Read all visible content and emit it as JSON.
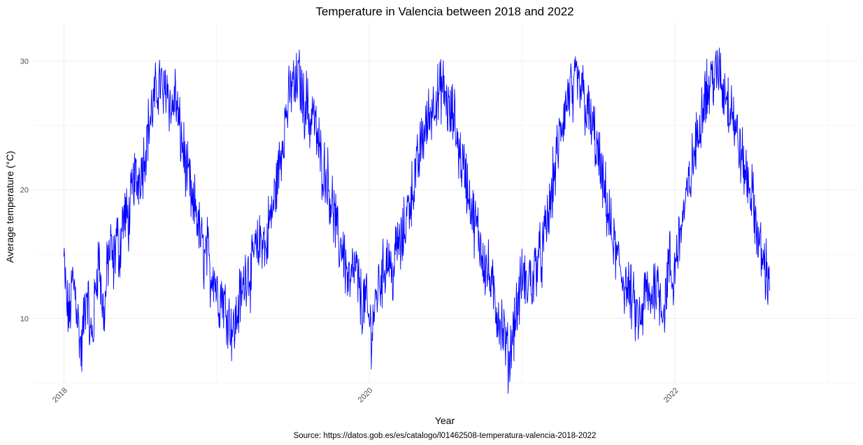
{
  "chart_data": {
    "type": "line",
    "title": "Temperature in Valencia between 2018 and 2022",
    "xlabel": "Year",
    "ylabel": "Average temperature (°C)",
    "caption": "Source: https://datos.gob.es/es/catalogo/l01462508-temperatura-valencia-2018-2022",
    "x_ticks": [
      "2018",
      "2020",
      "2022"
    ],
    "y_ticks": [
      "10",
      "20",
      "30"
    ],
    "xlim": [
      "2018-01-01",
      "2022-12-31"
    ],
    "ylim": [
      5,
      33
    ],
    "grid": true,
    "line_color": "#0000ff",
    "series": [
      {
        "x_start": "2018-01-01",
        "x_step": "7 days",
        "values": [
          14.5,
          11.0,
          10.2,
          13.0,
          12.0,
          9.5,
          7.2,
          10.5,
          12.5,
          8.5,
          9.0,
          13.0,
          15.0,
          11.0,
          10.5,
          14.5,
          15.5,
          14.0,
          16.5,
          15.0,
          17.5,
          18.0,
          17.5,
          19.0,
          21.0,
          20.5,
          21.5,
          22.0,
          23.5,
          25.0,
          26.0,
          27.0,
          28.0,
          28.5,
          27.0,
          28.5,
          27.0,
          26.0,
          27.5,
          25.5,
          24.0,
          23.0,
          21.0,
          20.5,
          18.0,
          19.0,
          17.0,
          16.0,
          14.5,
          15.5,
          13.0,
          14.0,
          12.5,
          11.5,
          12.0,
          11.0,
          10.5,
          9.5,
          9.0,
          10.0,
          11.5,
          12.0,
          13.5,
          14.0,
          13.0,
          15.5,
          15.0,
          16.0,
          16.5,
          15.0,
          17.5,
          18.0,
          19.5,
          21.0,
          22.5,
          24.5,
          26.0,
          27.0,
          28.5,
          27.5,
          29.0,
          28.0,
          26.5,
          27.0,
          25.0,
          26.5,
          24.5,
          23.5,
          22.0,
          21.5,
          21.0,
          19.5,
          18.5,
          17.0,
          15.5,
          16.0,
          14.5,
          13.0,
          12.5,
          14.0,
          13.5,
          12.0,
          11.0,
          11.5,
          10.0,
          9.0,
          10.5,
          12.0,
          13.0,
          13.5,
          14.5,
          15.0,
          13.0,
          14.5,
          16.0,
          15.5,
          16.5,
          18.0,
          19.0,
          20.0,
          21.0,
          22.0,
          23.5,
          24.5,
          25.0,
          26.0,
          26.5,
          27.5,
          27.0,
          28.0,
          27.5,
          26.5,
          25.5,
          26.0,
          24.5,
          23.0,
          22.0,
          21.5,
          20.0,
          19.0,
          17.5,
          17.0,
          16.0,
          15.0,
          14.0,
          13.5,
          12.5,
          11.5,
          10.5,
          10.0,
          9.0,
          8.0,
          6.5,
          8.5,
          10.0,
          11.0,
          12.5,
          13.5,
          12.0,
          13.5,
          12.5,
          14.0,
          15.0,
          14.5,
          16.0,
          17.5,
          18.5,
          20.5,
          22.0,
          23.5,
          25.0,
          26.0,
          27.0,
          28.0,
          26.5,
          29.0,
          27.5,
          28.0,
          26.5,
          26.0,
          25.0,
          24.5,
          23.0,
          22.0,
          20.0,
          19.5,
          18.0,
          16.5,
          15.5,
          14.5,
          14.0,
          13.0,
          12.5,
          12.0,
          11.5,
          10.5,
          10.0,
          9.5,
          11.0,
          12.5,
          11.0,
          12.0,
          13.0,
          12.5,
          11.5,
          10.5,
          13.0,
          14.5,
          12.0,
          15.0,
          16.0,
          17.5,
          18.5,
          19.5,
          21.0,
          22.5,
          23.5,
          25.0,
          26.5,
          28.0,
          27.5,
          28.5,
          29.0,
          28.5,
          29.5,
          27.5,
          28.0,
          26.5,
          27.0,
          25.0,
          24.0,
          23.0,
          22.0,
          21.0,
          20.5,
          19.5,
          18.0,
          16.5,
          15.0,
          14.5,
          13.5,
          13.0
        ]
      }
    ]
  }
}
